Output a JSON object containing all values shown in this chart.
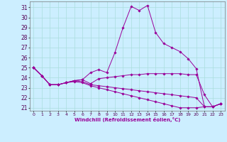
{
  "xlabel": "Windchill (Refroidissement éolien,°C)",
  "background_color": "#cceeff",
  "grid_color": "#aadddd",
  "line_color": "#990099",
  "x_ticks": [
    0,
    1,
    2,
    3,
    4,
    5,
    6,
    7,
    8,
    9,
    10,
    11,
    12,
    13,
    14,
    15,
    16,
    17,
    18,
    19,
    20,
    21,
    22,
    23
  ],
  "y_ticks": [
    21,
    22,
    23,
    24,
    25,
    26,
    27,
    28,
    29,
    30,
    31
  ],
  "ylim": [
    20.7,
    31.6
  ],
  "xlim": [
    -0.5,
    23.5
  ],
  "lines": [
    [
      25.0,
      24.2,
      23.3,
      23.3,
      23.5,
      23.7,
      23.8,
      24.5,
      24.8,
      24.5,
      26.5,
      29.0,
      31.1,
      30.7,
      31.2,
      28.5,
      27.4,
      27.0,
      26.6,
      25.9,
      24.9,
      21.1,
      21.1,
      21.4
    ],
    [
      25.0,
      24.2,
      23.3,
      23.3,
      23.5,
      23.7,
      23.8,
      23.4,
      23.9,
      24.0,
      24.1,
      24.2,
      24.3,
      24.3,
      24.4,
      24.4,
      24.4,
      24.4,
      24.4,
      24.3,
      24.3,
      22.3,
      21.1,
      21.4
    ],
    [
      25.0,
      24.2,
      23.3,
      23.3,
      23.5,
      23.7,
      23.6,
      23.3,
      23.2,
      23.1,
      23.0,
      22.9,
      22.8,
      22.7,
      22.6,
      22.5,
      22.4,
      22.3,
      22.2,
      22.1,
      22.0,
      21.1,
      21.1,
      21.4
    ],
    [
      25.0,
      24.2,
      23.3,
      23.3,
      23.5,
      23.6,
      23.5,
      23.2,
      23.0,
      22.8,
      22.6,
      22.4,
      22.2,
      22.0,
      21.8,
      21.6,
      21.4,
      21.2,
      21.0,
      21.0,
      21.0,
      21.1,
      21.1,
      21.4
    ]
  ]
}
